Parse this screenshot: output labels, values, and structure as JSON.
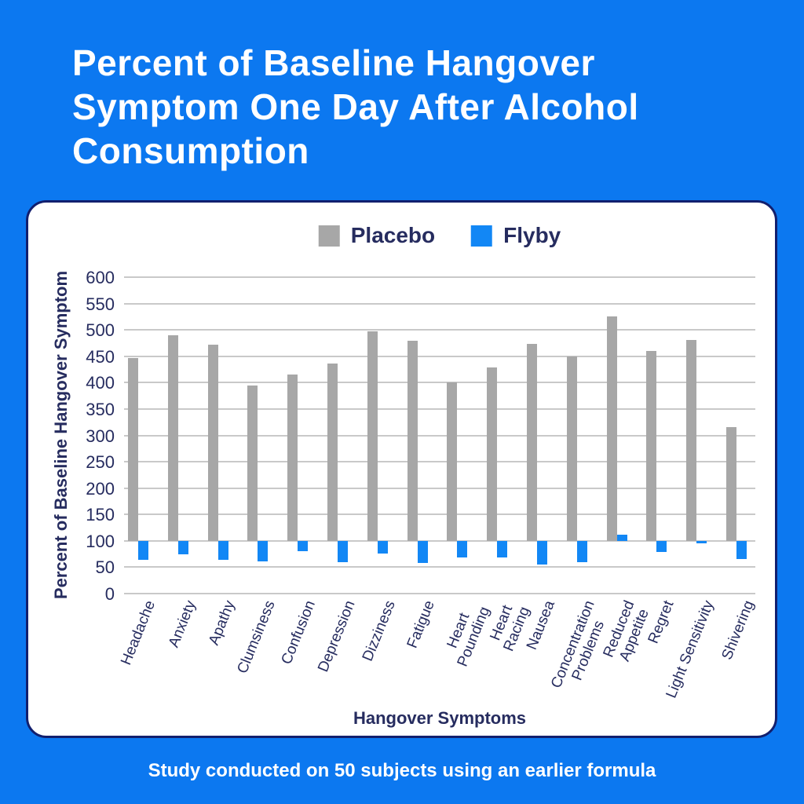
{
  "title": "Percent of Baseline Hangover Symptom One Day After Alcohol Consumption",
  "caption": "Study conducted on 50 subjects using an earlier formula",
  "legend": {
    "items": [
      {
        "label": "Placebo",
        "color": "#A7A7A7"
      },
      {
        "label": "Flyby",
        "color": "#1287F5"
      }
    ]
  },
  "chart_data": {
    "type": "bar",
    "title": "Percent of Baseline Hangover Symptom One Day After Alcohol Consumption",
    "xlabel": "Hangover Symptoms",
    "ylabel": "Percent of Baseline Hangover Symptom",
    "ylim": [
      0,
      600
    ],
    "yticks": [
      0,
      50,
      100,
      150,
      200,
      250,
      300,
      350,
      400,
      450,
      500,
      550,
      600
    ],
    "baseline": 100,
    "grid": true,
    "legend_position": "top-center",
    "categories": [
      "Headache",
      "Anxiety",
      "Apathy",
      "Clumsiness",
      "Confusion",
      "Depression",
      "Dizziness",
      "Fatigue",
      "Heart\nPounding",
      "Heart\nRacing",
      "Nausea",
      "Concentration\nProblems",
      "Reduced\nAppetite",
      "Regret",
      "Light Sensitivity",
      "Shivering"
    ],
    "series": [
      {
        "name": "Placebo",
        "color": "#A7A7A7",
        "values": [
          446,
          490,
          472,
          394,
          415,
          436,
          497,
          480,
          400,
          429,
          474,
          450,
          525,
          460,
          481,
          315
        ]
      },
      {
        "name": "Flyby",
        "color": "#1287F5",
        "values": [
          64,
          75,
          64,
          61,
          80,
          59,
          76,
          58,
          68,
          69,
          55,
          60,
          112,
          79,
          95,
          66
        ]
      }
    ]
  },
  "colors": {
    "background": "#0C78F0",
    "card_background": "#FFFFFF",
    "card_border": "#121F6E",
    "text_navy": "#262C5F",
    "title_text": "#FFFFFF",
    "gridline": "#C9C9C9"
  }
}
